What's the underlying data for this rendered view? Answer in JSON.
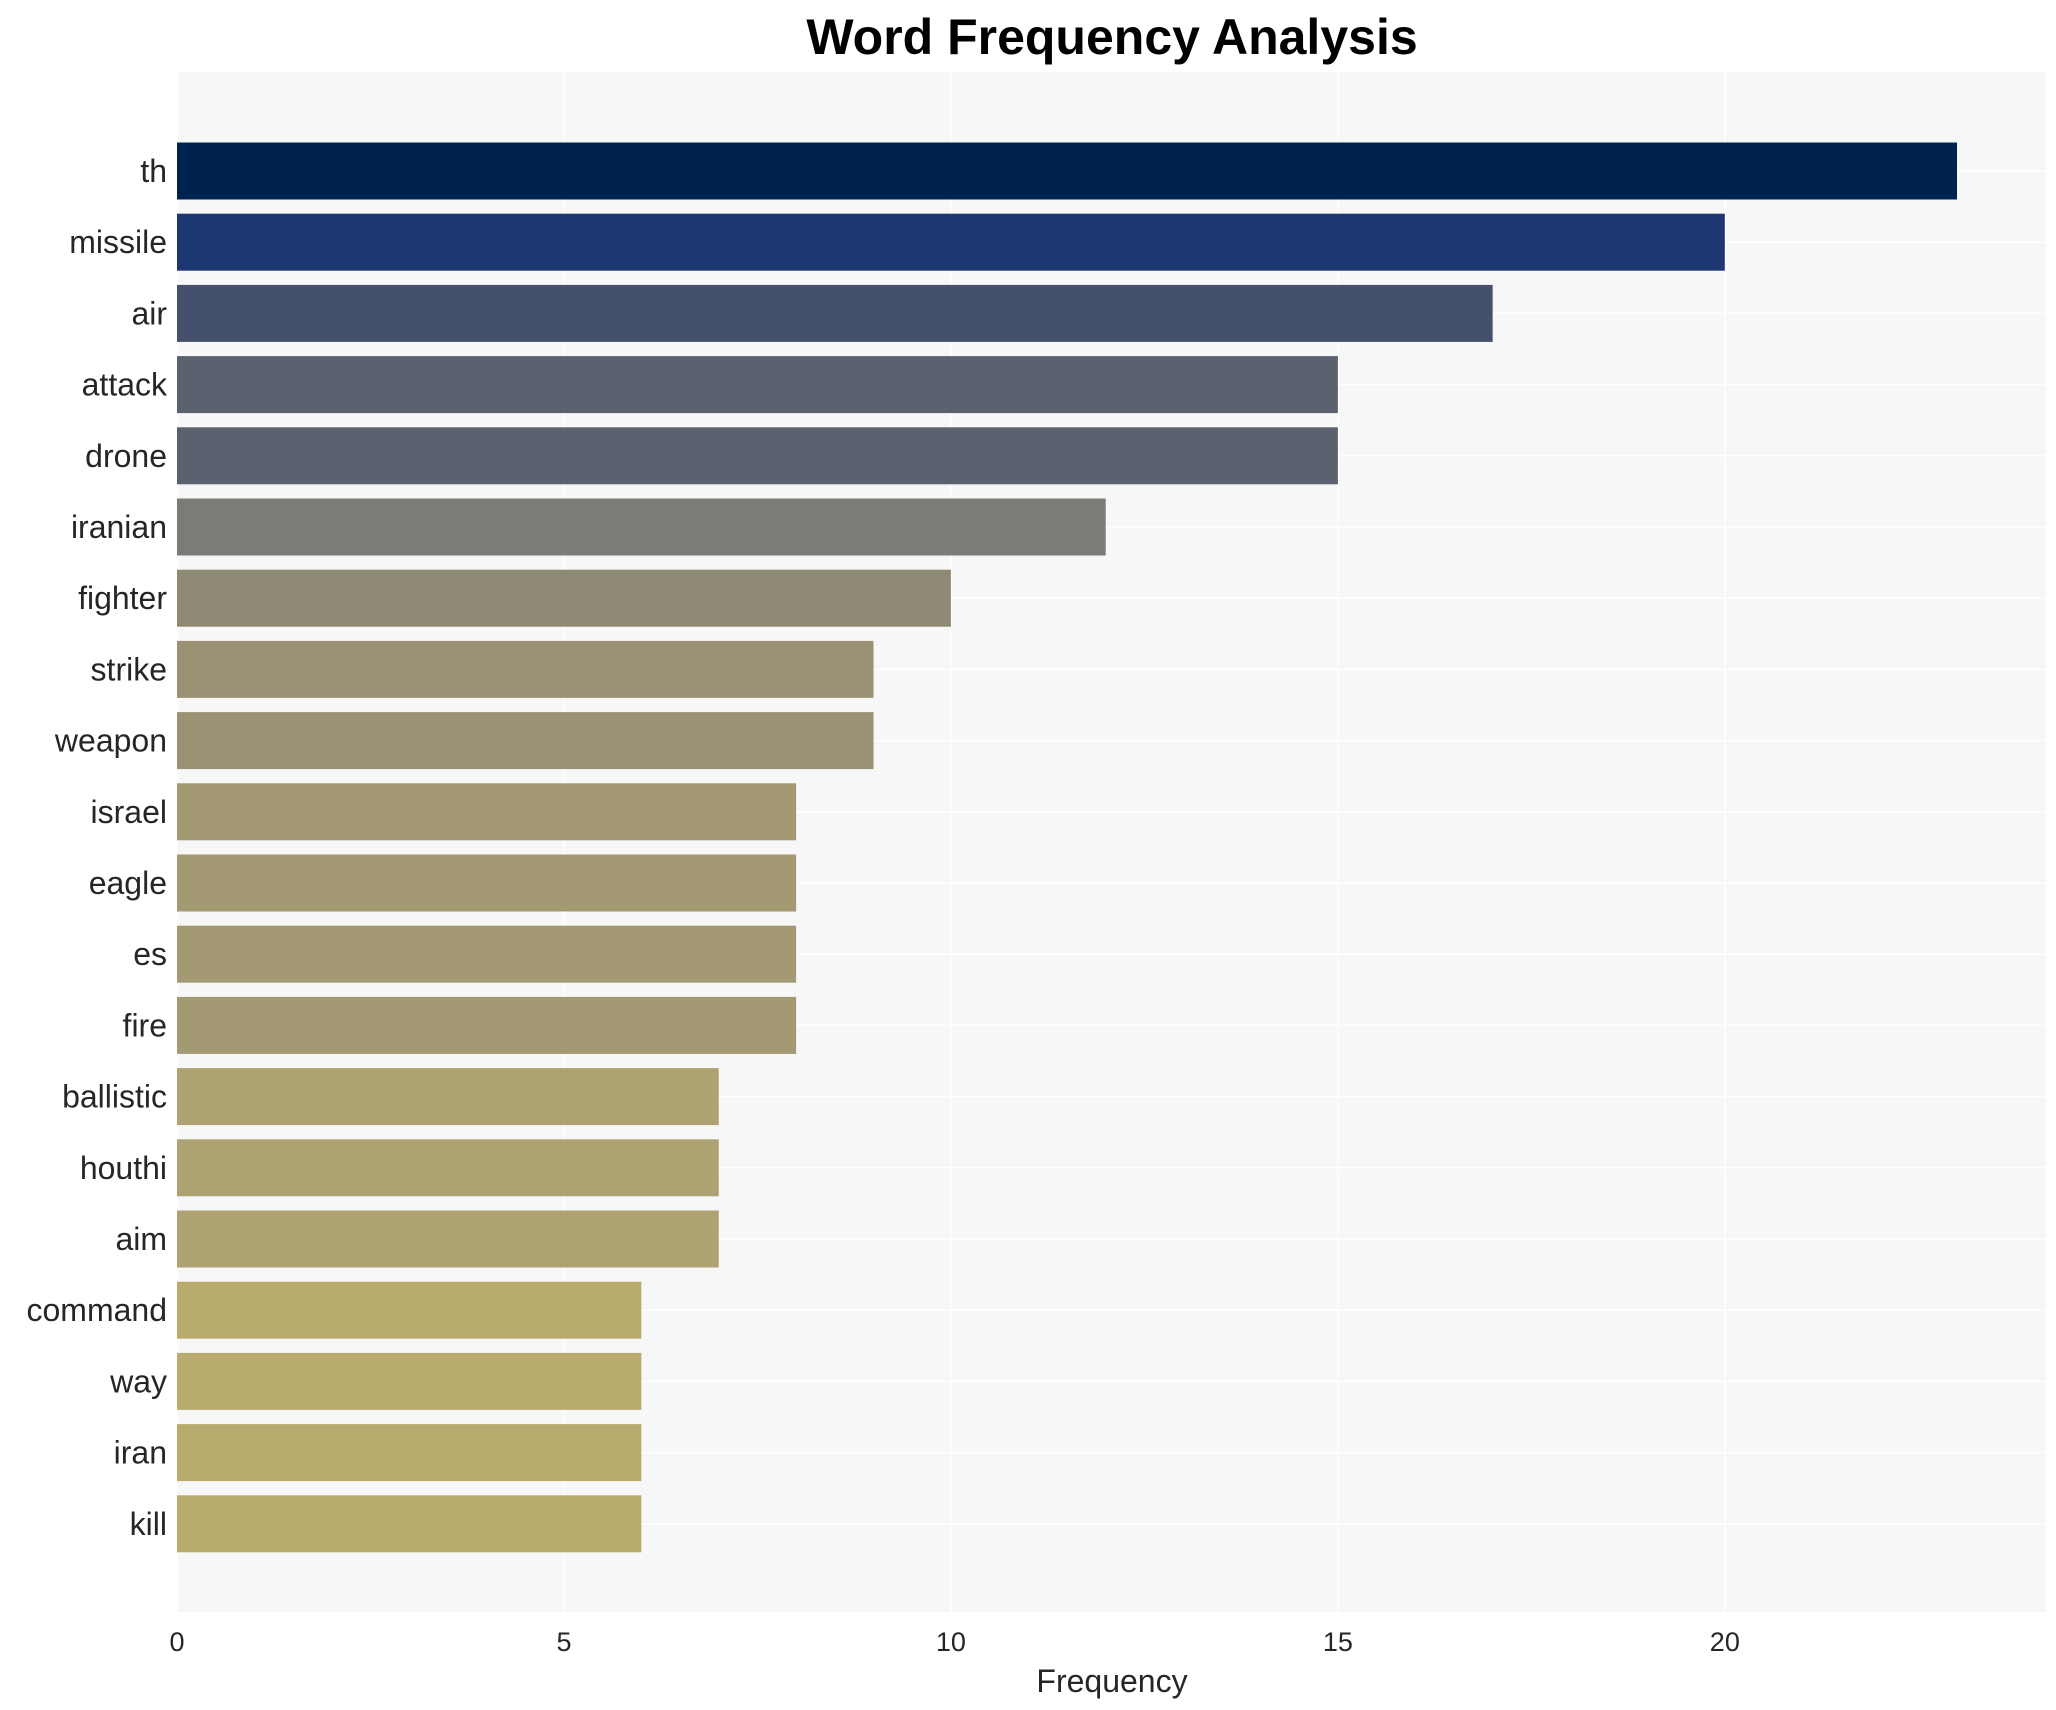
{
  "chart_data": {
    "type": "bar",
    "orientation": "horizontal",
    "title": "Word Frequency Analysis",
    "xlabel": "Frequency",
    "ylabel": "",
    "xlim": [
      0,
      24.15
    ],
    "xticks": [
      0,
      5,
      10,
      15,
      20
    ],
    "grid": true,
    "background": "#f7f7f7",
    "categories": [
      "th",
      "missile",
      "air",
      "attack",
      "drone",
      "iranian",
      "fighter",
      "strike",
      "weapon",
      "israel",
      "eagle",
      "es",
      "fire",
      "ballistic",
      "houthi",
      "aim",
      "command",
      "way",
      "iran",
      "kill"
    ],
    "values": [
      23,
      20,
      17,
      15,
      15,
      12,
      10,
      9,
      9,
      8,
      8,
      8,
      8,
      7,
      7,
      7,
      6,
      6,
      6,
      6
    ],
    "colors": [
      "#00224e",
      "#1d3770",
      "#44506c",
      "#5b616f",
      "#5b616f",
      "#7b7b78",
      "#8f8a75",
      "#9b9275",
      "#9b9275",
      "#a39973",
      "#a39973",
      "#a39973",
      "#a39973",
      "#afa272",
      "#afa272",
      "#afa272",
      "#b9aa6e",
      "#b9aa6e",
      "#b9aa6e",
      "#b9aa6e"
    ]
  }
}
